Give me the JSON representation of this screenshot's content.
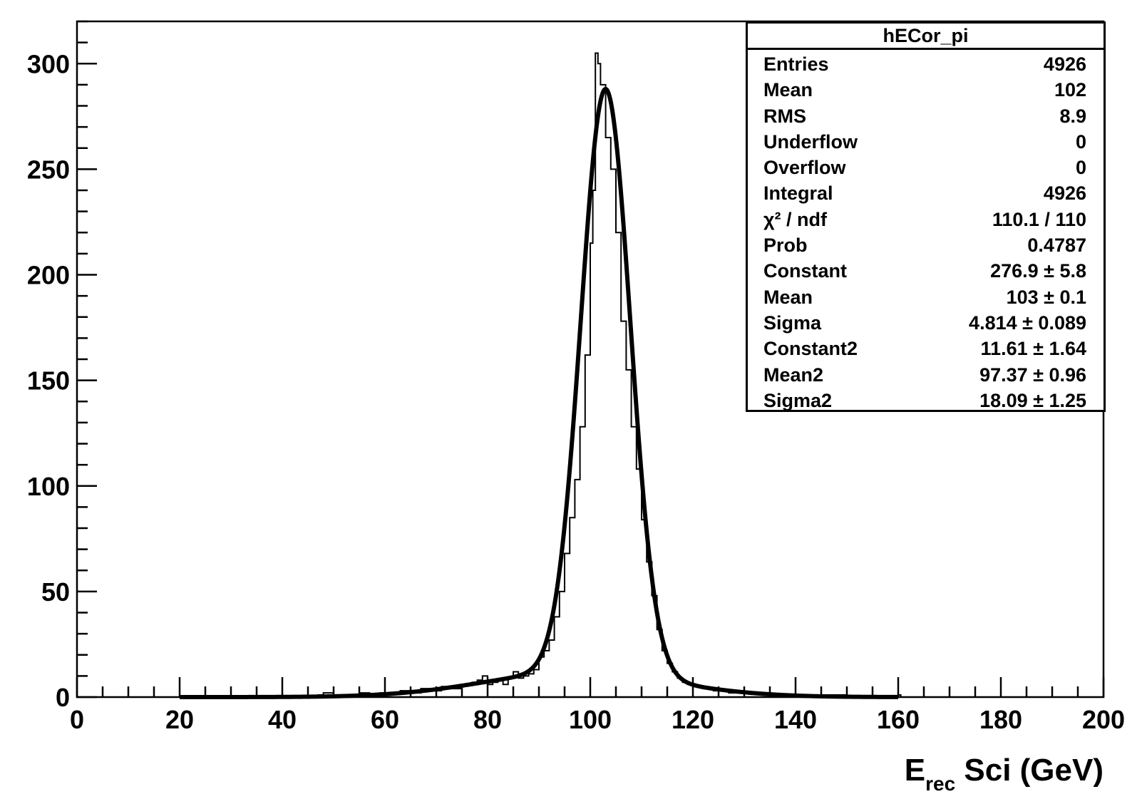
{
  "chart_data": {
    "type": "histogram",
    "xlabel": {
      "main": "E",
      "sub": "rec",
      "rest": " Sci (GeV)"
    },
    "xlim": [
      0,
      200
    ],
    "ylim": [
      0,
      320
    ],
    "x_ticks": [
      "0",
      "20",
      "40",
      "60",
      "80",
      "100",
      "120",
      "140",
      "160",
      "180",
      "200"
    ],
    "y_ticks": [
      "0",
      "50",
      "100",
      "150",
      "200",
      "250",
      "300"
    ],
    "grid": false,
    "histogram": {
      "name": "hECor_pi",
      "bin_width": 0.5,
      "bins": [
        [
          45,
          0
        ],
        [
          47,
          1
        ],
        [
          48,
          2
        ],
        [
          50,
          0
        ],
        [
          52,
          1
        ],
        [
          54,
          0
        ],
        [
          55,
          2
        ],
        [
          57,
          1
        ],
        [
          59,
          2
        ],
        [
          61,
          2
        ],
        [
          63,
          3
        ],
        [
          65,
          2
        ],
        [
          67,
          4
        ],
        [
          69,
          3
        ],
        [
          71,
          5
        ],
        [
          73,
          4
        ],
        [
          75,
          6
        ],
        [
          77,
          7
        ],
        [
          78,
          8
        ],
        [
          79,
          10
        ],
        [
          80,
          6
        ],
        [
          81,
          7
        ],
        [
          82,
          8
        ],
        [
          83,
          6
        ],
        [
          84,
          9
        ],
        [
          85,
          12
        ],
        [
          86,
          9
        ],
        [
          87,
          10
        ],
        [
          88,
          11
        ],
        [
          89,
          13
        ],
        [
          90,
          19
        ],
        [
          91,
          22
        ],
        [
          92,
          27
        ],
        [
          93,
          38
        ],
        [
          94,
          50
        ],
        [
          95,
          68
        ],
        [
          96,
          85
        ],
        [
          97,
          103
        ],
        [
          98,
          128
        ],
        [
          99,
          162
        ],
        [
          100,
          215
        ],
        [
          100.5,
          240
        ],
        [
          101,
          305
        ],
        [
          101.5,
          300
        ],
        [
          102,
          290
        ],
        [
          103,
          265
        ],
        [
          104,
          250
        ],
        [
          105,
          220
        ],
        [
          106,
          178
        ],
        [
          107,
          155
        ],
        [
          108,
          128
        ],
        [
          109,
          108
        ],
        [
          110,
          84
        ],
        [
          111,
          64
        ],
        [
          112,
          48
        ],
        [
          113,
          32
        ],
        [
          114,
          22
        ],
        [
          115,
          16
        ],
        [
          116,
          12
        ],
        [
          117,
          9
        ],
        [
          118,
          7
        ],
        [
          119,
          6
        ],
        [
          120,
          5
        ],
        [
          122,
          4
        ],
        [
          124,
          3
        ],
        [
          125,
          3
        ],
        [
          127,
          2
        ],
        [
          129,
          2
        ],
        [
          131,
          2
        ],
        [
          133,
          1
        ],
        [
          135,
          1
        ],
        [
          138,
          1
        ],
        [
          142,
          0
        ],
        [
          146,
          1
        ],
        [
          150,
          0
        ],
        [
          155,
          0
        ],
        [
          160,
          1
        ]
      ]
    },
    "fit": {
      "name": "double gaussian",
      "range": [
        20,
        160
      ],
      "constant": 276.9,
      "mean": 103,
      "sigma": 4.814,
      "constant2": 11.61,
      "mean2": 97.37,
      "sigma2": 18.09
    }
  },
  "stats": {
    "title": "hECor_pi",
    "rows": [
      {
        "label": "Entries",
        "value": "4926"
      },
      {
        "label": "Mean",
        "value": "102"
      },
      {
        "label": "RMS",
        "value": "8.9"
      },
      {
        "label": "Underflow",
        "value": "0"
      },
      {
        "label": "Overflow",
        "value": "0"
      },
      {
        "label": "Integral",
        "value": "4926"
      },
      {
        "label": "χ² / ndf",
        "value": "110.1 / 110"
      },
      {
        "label": "Prob",
        "value": "0.4787"
      },
      {
        "label": "Constant",
        "value": "276.9 ± 5.8"
      },
      {
        "label": "Mean",
        "value": "103 ± 0.1"
      },
      {
        "label": "Sigma",
        "value": "4.814 ± 0.089"
      },
      {
        "label": "Constant2",
        "value": "11.61 ± 1.64"
      },
      {
        "label": "Mean2",
        "value": "97.37 ± 0.96"
      },
      {
        "label": "Sigma2",
        "value": "18.09 ± 1.25"
      }
    ]
  }
}
